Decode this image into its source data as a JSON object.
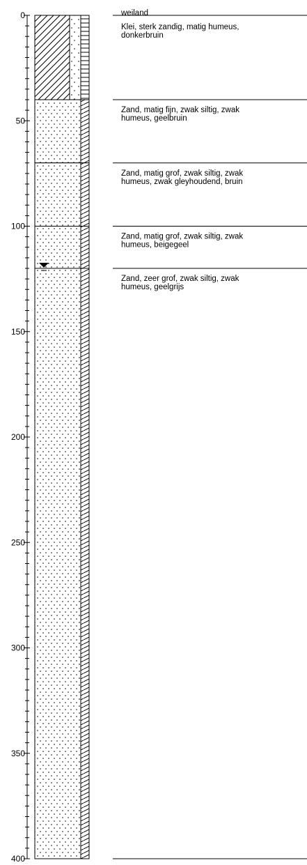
{
  "chart_data": {
    "type": "borehole-log",
    "depth_range": [
      0,
      400
    ],
    "major_ticks": [
      0,
      50,
      100,
      150,
      200,
      250,
      300,
      350,
      400
    ],
    "minor_tick_step": 5,
    "top_label": "weiland",
    "groundwater_depth": 120,
    "layers": [
      {
        "top": 0,
        "bottom": 40,
        "main": "clay",
        "secondary": "sand",
        "humus": "moderate",
        "text": [
          "Klei, sterk zandig, matig humeus,",
          "donkerbruin"
        ]
      },
      {
        "top": 40,
        "bottom": 70,
        "main": "sand",
        "secondary": "silt",
        "humus": "weak",
        "text": [
          "Zand, matig fijn, zwak siltig, zwak",
          "humeus, geelbruin"
        ]
      },
      {
        "top": 70,
        "bottom": 100,
        "main": "sand",
        "secondary": "silt",
        "humus": "weak",
        "text": [
          "Zand, matig grof, zwak siltig, zwak",
          "humeus, zwak gleyhoudend, bruin"
        ]
      },
      {
        "top": 100,
        "bottom": 120,
        "main": "sand",
        "secondary": "silt",
        "humus": "weak",
        "text": [
          "Zand, matig grof, zwak siltig, zwak",
          "humeus, beigegeel"
        ]
      },
      {
        "top": 120,
        "bottom": 400,
        "main": "sand",
        "secondary": "silt",
        "humus": "weak",
        "text": [
          "Zand, zeer grof, zwak siltig, zwak",
          "humeus, geelgrijs"
        ]
      }
    ]
  }
}
